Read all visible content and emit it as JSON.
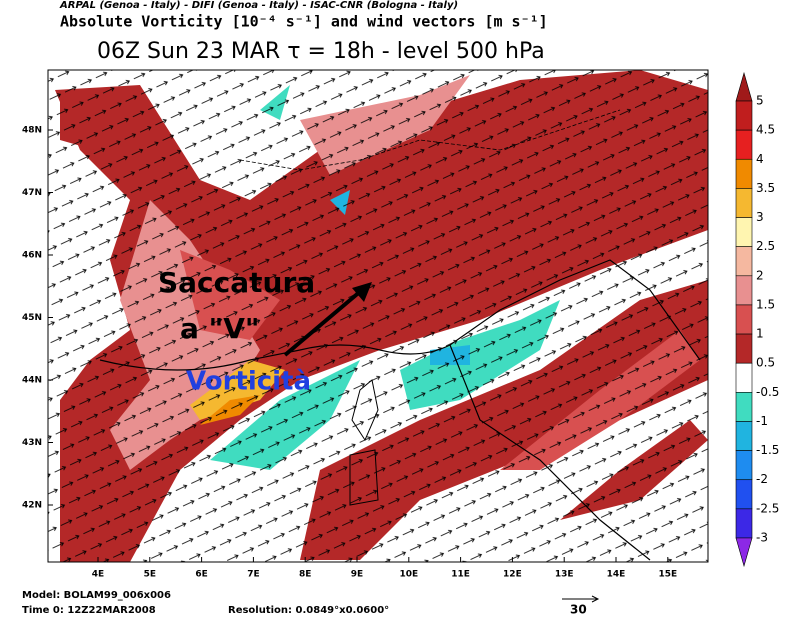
{
  "header": {
    "credits": "ARPAL (Genoa - Italy)  -  DIFI (Genoa - Italy)  -  ISAC-CNR (Bologna - Italy)",
    "field": "Absolute Vorticity [10⁻⁴ s⁻¹] and wind vectors [m s⁻¹]",
    "title": "06Z Sun 23 MAR  τ = 18h  -  level 500 hPa"
  },
  "map": {
    "latitudes": [
      "48N",
      "47N",
      "46N",
      "45N",
      "44N",
      "43N",
      "42N"
    ],
    "longitudes": [
      "4E",
      "5E",
      "6E",
      "7E",
      "8E",
      "9E",
      "10E",
      "11E",
      "12E",
      "13E",
      "14E",
      "15E"
    ],
    "annotations": [
      "Saccatura",
      "a \"V\"",
      "Vorticità"
    ]
  },
  "colorbar": {
    "levels": [
      5,
      4.5,
      4,
      3.5,
      3,
      2.5,
      2,
      1.5,
      1,
      0.5,
      -0.5,
      -1,
      -1.5,
      -2,
      -2.5,
      -3
    ],
    "colors": [
      "#a01a1a",
      "#c01e1e",
      "#e62020",
      "#f08a00",
      "#f5b830",
      "#fff5b0",
      "#f5b8a0",
      "#e89090",
      "#d85050",
      "#b42828",
      "#ffffff",
      "#40dcc0",
      "#20b4e0",
      "#1e8cf0",
      "#2050f0",
      "#3c28e6",
      "#8c28e6"
    ]
  },
  "footer": {
    "model": "Model: BOLAM99_006x006",
    "time": "Time 0: 12Z22MAR2008",
    "resolution": "Resolution: 0.0849°x0.0600°",
    "scale": "30"
  }
}
